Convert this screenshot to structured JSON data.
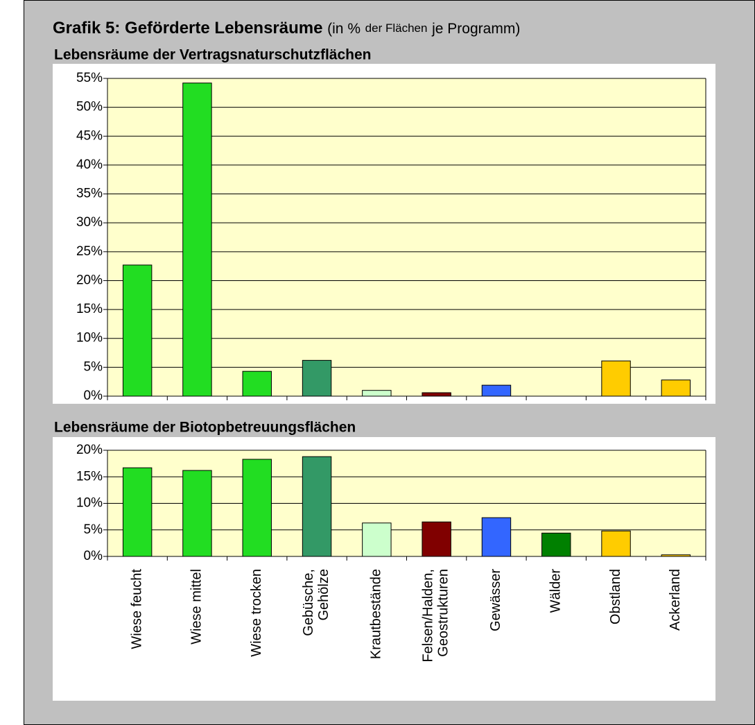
{
  "header": {
    "main": "Grafik 5:  Geförderte Lebensräume",
    "note_a": "(in %",
    "note_b": "der Flächen",
    "note_c": "je Programm)"
  },
  "chart_data": [
    {
      "type": "bar",
      "title": "Lebensräume der Vertragsnaturschutzflächen",
      "values": [
        22.7,
        54.2,
        4.3,
        6.2,
        1.0,
        0.6,
        1.9,
        0,
        6.1,
        2.8
      ],
      "colors": [
        "#22dd22",
        "#22dd22",
        "#22dd22",
        "#339966",
        "#ccffcc",
        "#800000",
        "#3366ff",
        "#008000",
        "#ffcc00",
        "#ffcc00"
      ],
      "ylim": [
        0,
        55
      ],
      "yticks": [
        {
          "value": 0,
          "label": "0%"
        },
        {
          "value": 5,
          "label": "5%"
        },
        {
          "value": 10,
          "label": "10%"
        },
        {
          "value": 15,
          "label": "15%"
        },
        {
          "value": 20,
          "label": "20%"
        },
        {
          "value": 25,
          "label": "25%"
        },
        {
          "value": 30,
          "label": "30%"
        },
        {
          "value": 35,
          "label": "35%"
        },
        {
          "value": 40,
          "label": "40%"
        },
        {
          "value": 45,
          "label": "45%"
        },
        {
          "value": 50,
          "label": "50%"
        },
        {
          "value": 55,
          "label": "55%"
        }
      ],
      "grid": true
    },
    {
      "type": "bar",
      "title": "Lebensräume der Biotopbetreuungsflächen",
      "categories": [
        "Wiese feucht",
        "Wiese mittel",
        "Wiese trocken",
        "Gebüsche,\nGehölze",
        "Krautbestände",
        "Felsen/Halden,\nGeostrukturen",
        "Gewässer",
        "Wälder",
        "Obstland",
        "Ackerland"
      ],
      "values": [
        16.7,
        16.2,
        18.3,
        18.8,
        6.3,
        6.5,
        7.3,
        4.4,
        4.8,
        0.3
      ],
      "colors": [
        "#22dd22",
        "#22dd22",
        "#22dd22",
        "#339966",
        "#ccffcc",
        "#800000",
        "#3366ff",
        "#008000",
        "#ffcc00",
        "#ffcc00"
      ],
      "ylim": [
        0,
        20
      ],
      "yticks": [
        {
          "value": 0,
          "label": "0%"
        },
        {
          "value": 5,
          "label": "5%"
        },
        {
          "value": 10,
          "label": "10%"
        },
        {
          "value": 15,
          "label": "15%"
        },
        {
          "value": 20,
          "label": "20%"
        }
      ],
      "grid": true
    }
  ]
}
